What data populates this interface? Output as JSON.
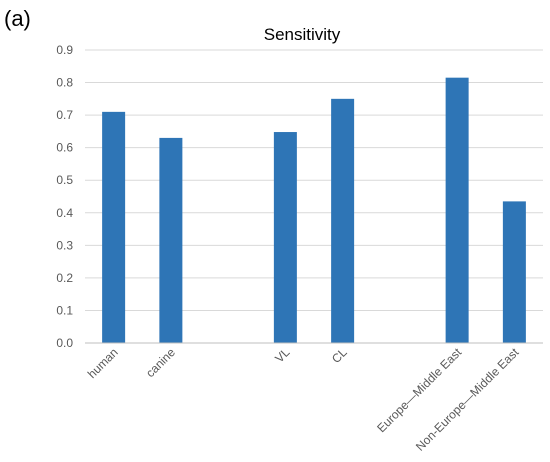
{
  "panel_label": "(a)",
  "chart_data": {
    "type": "bar",
    "title": "Sensitivity",
    "xlabel": "",
    "ylabel": "",
    "categories": [
      "human",
      "canine",
      "",
      "VL",
      "CL",
      "",
      "Europe—Middle East",
      "Non-Europe—Middle East"
    ],
    "values": [
      0.71,
      0.63,
      null,
      0.648,
      0.75,
      null,
      0.815,
      0.435
    ],
    "ylim": [
      0,
      0.9
    ],
    "yticks": [
      "0.0",
      "0.1",
      "0.2",
      "0.3",
      "0.4",
      "0.5",
      "0.6",
      "0.7",
      "0.8",
      "0.9"
    ],
    "grid": true,
    "legend": "none",
    "bar_color": "#2e75b6"
  }
}
